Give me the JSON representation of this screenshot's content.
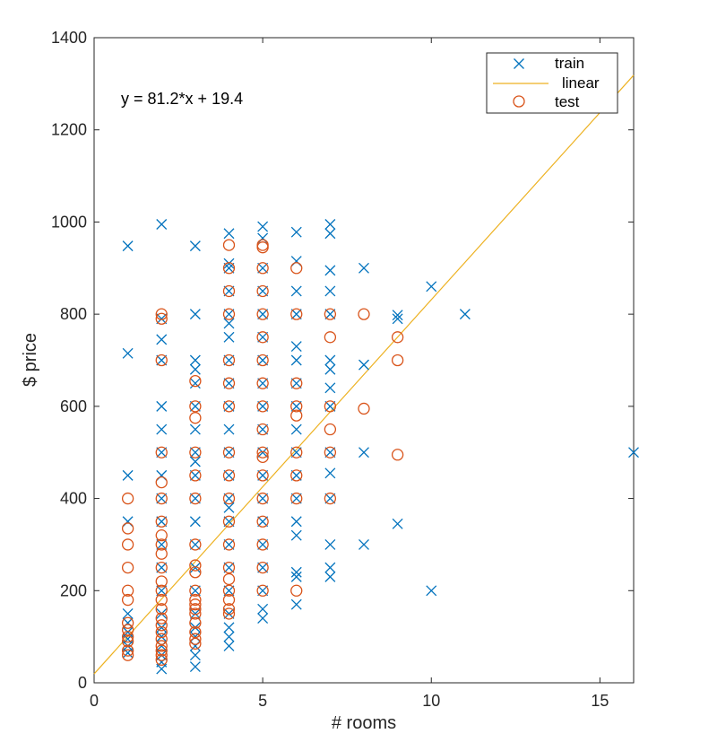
{
  "chart_data": {
    "type": "scatter",
    "title": "",
    "xlabel": "# rooms",
    "ylabel": "$ price",
    "xlim": [
      0,
      16
    ],
    "ylim": [
      0,
      1400
    ],
    "xticks": [
      0,
      5,
      10,
      15
    ],
    "yticks": [
      0,
      200,
      400,
      600,
      800,
      1000,
      1200,
      1400
    ],
    "grid": false,
    "legend_position": "top-right",
    "annotation": "y = 81.2*x + 19.4",
    "colors": {
      "train": "#0072BD",
      "linear": "#EDB120",
      "test": "#D95319"
    },
    "series": [
      {
        "name": "train",
        "marker": "x",
        "points": [
          [
            1,
            948
          ],
          [
            1,
            715
          ],
          [
            1,
            450
          ],
          [
            1,
            350
          ],
          [
            1,
            150
          ],
          [
            1,
            130
          ],
          [
            1,
            110
          ],
          [
            1,
            95
          ],
          [
            1,
            80
          ],
          [
            1,
            65
          ],
          [
            2,
            995
          ],
          [
            2,
            790
          ],
          [
            2,
            745
          ],
          [
            2,
            700
          ],
          [
            2,
            600
          ],
          [
            2,
            550
          ],
          [
            2,
            500
          ],
          [
            2,
            450
          ],
          [
            2,
            400
          ],
          [
            2,
            350
          ],
          [
            2,
            300
          ],
          [
            2,
            250
          ],
          [
            2,
            200
          ],
          [
            2,
            150
          ],
          [
            2,
            120
          ],
          [
            2,
            100
          ],
          [
            2,
            80
          ],
          [
            2,
            60
          ],
          [
            2,
            45
          ],
          [
            2,
            30
          ],
          [
            3,
            948
          ],
          [
            3,
            800
          ],
          [
            3,
            700
          ],
          [
            3,
            680
          ],
          [
            3,
            650
          ],
          [
            3,
            600
          ],
          [
            3,
            550
          ],
          [
            3,
            500
          ],
          [
            3,
            480
          ],
          [
            3,
            450
          ],
          [
            3,
            400
          ],
          [
            3,
            350
          ],
          [
            3,
            300
          ],
          [
            3,
            250
          ],
          [
            3,
            200
          ],
          [
            3,
            150
          ],
          [
            3,
            120
          ],
          [
            3,
            100
          ],
          [
            3,
            80
          ],
          [
            3,
            60
          ],
          [
            3,
            35
          ],
          [
            4,
            975
          ],
          [
            4,
            910
          ],
          [
            4,
            900
          ],
          [
            4,
            850
          ],
          [
            4,
            800
          ],
          [
            4,
            780
          ],
          [
            4,
            750
          ],
          [
            4,
            700
          ],
          [
            4,
            650
          ],
          [
            4,
            600
          ],
          [
            4,
            550
          ],
          [
            4,
            500
          ],
          [
            4,
            450
          ],
          [
            4,
            400
          ],
          [
            4,
            380
          ],
          [
            4,
            350
          ],
          [
            4,
            300
          ],
          [
            4,
            250
          ],
          [
            4,
            200
          ],
          [
            4,
            150
          ],
          [
            4,
            120
          ],
          [
            4,
            100
          ],
          [
            4,
            80
          ],
          [
            5,
            990
          ],
          [
            5,
            965
          ],
          [
            5,
            900
          ],
          [
            5,
            850
          ],
          [
            5,
            800
          ],
          [
            5,
            750
          ],
          [
            5,
            700
          ],
          [
            5,
            650
          ],
          [
            5,
            600
          ],
          [
            5,
            550
          ],
          [
            5,
            500
          ],
          [
            5,
            450
          ],
          [
            5,
            400
          ],
          [
            5,
            350
          ],
          [
            5,
            300
          ],
          [
            5,
            250
          ],
          [
            5,
            200
          ],
          [
            5,
            160
          ],
          [
            5,
            140
          ],
          [
            6,
            978
          ],
          [
            6,
            915
          ],
          [
            6,
            850
          ],
          [
            6,
            800
          ],
          [
            6,
            730
          ],
          [
            6,
            700
          ],
          [
            6,
            650
          ],
          [
            6,
            600
          ],
          [
            6,
            550
          ],
          [
            6,
            500
          ],
          [
            6,
            450
          ],
          [
            6,
            400
          ],
          [
            6,
            350
          ],
          [
            6,
            320
          ],
          [
            6,
            240
          ],
          [
            6,
            230
          ],
          [
            6,
            170
          ],
          [
            7,
            995
          ],
          [
            7,
            975
          ],
          [
            7,
            895
          ],
          [
            7,
            850
          ],
          [
            7,
            800
          ],
          [
            7,
            700
          ],
          [
            7,
            680
          ],
          [
            7,
            640
          ],
          [
            7,
            600
          ],
          [
            7,
            500
          ],
          [
            7,
            455
          ],
          [
            7,
            400
          ],
          [
            7,
            300
          ],
          [
            7,
            250
          ],
          [
            7,
            230
          ],
          [
            8,
            900
          ],
          [
            8,
            690
          ],
          [
            8,
            500
          ],
          [
            8,
            300
          ],
          [
            9,
            798
          ],
          [
            9,
            790
          ],
          [
            9,
            345
          ],
          [
            10,
            860
          ],
          [
            10,
            200
          ],
          [
            11,
            800
          ],
          [
            16,
            500
          ]
        ]
      },
      {
        "name": "test",
        "marker": "o",
        "points": [
          [
            1,
            400
          ],
          [
            1,
            335
          ],
          [
            1,
            300
          ],
          [
            1,
            250
          ],
          [
            1,
            200
          ],
          [
            1,
            180
          ],
          [
            1,
            130
          ],
          [
            1,
            115
          ],
          [
            1,
            100
          ],
          [
            1,
            90
          ],
          [
            1,
            70
          ],
          [
            1,
            60
          ],
          [
            2,
            800
          ],
          [
            2,
            790
          ],
          [
            2,
            700
          ],
          [
            2,
            500
          ],
          [
            2,
            435
          ],
          [
            2,
            400
          ],
          [
            2,
            350
          ],
          [
            2,
            320
          ],
          [
            2,
            300
          ],
          [
            2,
            280
          ],
          [
            2,
            250
          ],
          [
            2,
            220
          ],
          [
            2,
            200
          ],
          [
            2,
            180
          ],
          [
            2,
            160
          ],
          [
            2,
            140
          ],
          [
            2,
            125
          ],
          [
            2,
            110
          ],
          [
            2,
            95
          ],
          [
            2,
            80
          ],
          [
            2,
            70
          ],
          [
            2,
            60
          ],
          [
            2,
            50
          ],
          [
            3,
            655
          ],
          [
            3,
            600
          ],
          [
            3,
            575
          ],
          [
            3,
            500
          ],
          [
            3,
            450
          ],
          [
            3,
            400
          ],
          [
            3,
            300
          ],
          [
            3,
            255
          ],
          [
            3,
            240
          ],
          [
            3,
            200
          ],
          [
            3,
            180
          ],
          [
            3,
            170
          ],
          [
            3,
            160
          ],
          [
            3,
            150
          ],
          [
            3,
            130
          ],
          [
            3,
            110
          ],
          [
            3,
            95
          ],
          [
            3,
            85
          ],
          [
            4,
            950
          ],
          [
            4,
            900
          ],
          [
            4,
            850
          ],
          [
            4,
            800
          ],
          [
            4,
            700
          ],
          [
            4,
            650
          ],
          [
            4,
            600
          ],
          [
            4,
            500
          ],
          [
            4,
            450
          ],
          [
            4,
            400
          ],
          [
            4,
            350
          ],
          [
            4,
            300
          ],
          [
            4,
            250
          ],
          [
            4,
            225
          ],
          [
            4,
            200
          ],
          [
            4,
            180
          ],
          [
            4,
            160
          ],
          [
            4,
            150
          ],
          [
            5,
            950
          ],
          [
            5,
            945
          ],
          [
            5,
            900
          ],
          [
            5,
            850
          ],
          [
            5,
            800
          ],
          [
            5,
            750
          ],
          [
            5,
            700
          ],
          [
            5,
            650
          ],
          [
            5,
            600
          ],
          [
            5,
            550
          ],
          [
            5,
            500
          ],
          [
            5,
            490
          ],
          [
            5,
            450
          ],
          [
            5,
            400
          ],
          [
            5,
            350
          ],
          [
            5,
            300
          ],
          [
            5,
            250
          ],
          [
            5,
            200
          ],
          [
            6,
            900
          ],
          [
            6,
            800
          ],
          [
            6,
            650
          ],
          [
            6,
            600
          ],
          [
            6,
            580
          ],
          [
            6,
            500
          ],
          [
            6,
            450
          ],
          [
            6,
            400
          ],
          [
            6,
            200
          ],
          [
            7,
            800
          ],
          [
            7,
            750
          ],
          [
            7,
            600
          ],
          [
            7,
            550
          ],
          [
            7,
            500
          ],
          [
            7,
            400
          ],
          [
            8,
            800
          ],
          [
            8,
            595
          ],
          [
            9,
            750
          ],
          [
            9,
            700
          ],
          [
            9,
            495
          ]
        ]
      },
      {
        "name": "linear",
        "type": "line",
        "slope": 81.2,
        "intercept": 19.4
      }
    ]
  }
}
